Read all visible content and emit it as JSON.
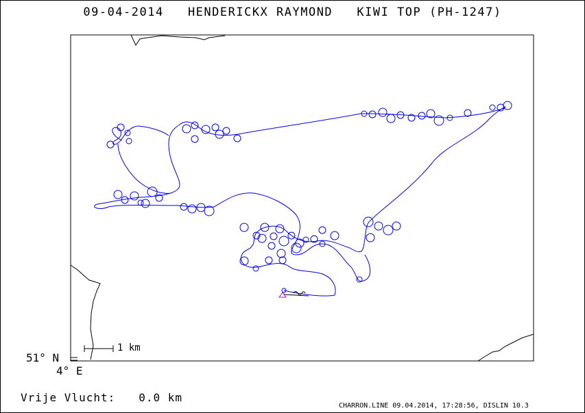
{
  "header": {
    "date": "09-04-2014",
    "pilot": "HENDERICKX RAYMOND",
    "glider": "KIWI TOP (PH-1247)"
  },
  "map": {
    "lat_label": "51° N",
    "lon_label": "4° E",
    "scale_label": "1 km",
    "track_color": "#0000ee",
    "start_marker_color": "#cc00cc",
    "boundary_color": "#000000"
  },
  "stats": {
    "distance_label": "Vrije Vlucht:",
    "distance_value": "0.0 km"
  },
  "footer": {
    "text": "CHARRON.LINE 09.04.2014, 17:28:56, DISLIN 10.3"
  }
}
